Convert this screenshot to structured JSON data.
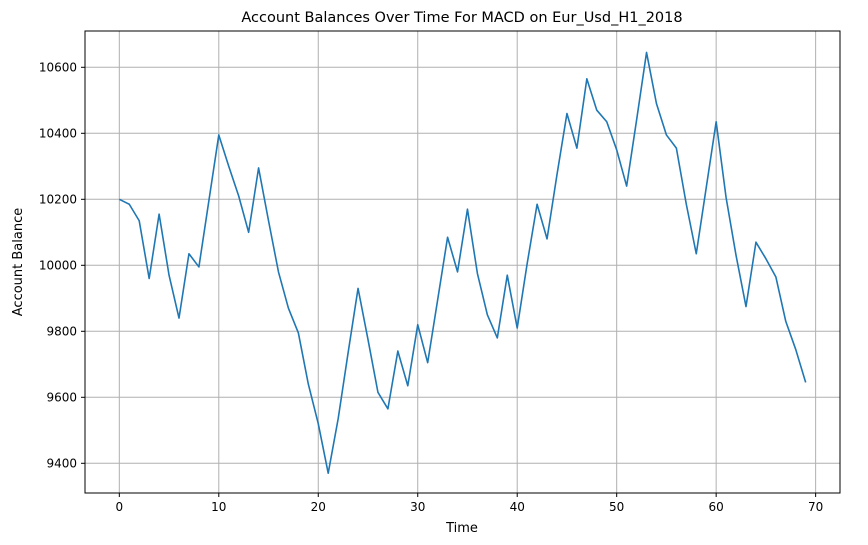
{
  "chart_data": {
    "type": "line",
    "title": "Account Balances Over Time For MACD on Eur_Usd_H1_2018",
    "xlabel": "Time",
    "ylabel": "Account Balance",
    "xlim": [
      -3.45,
      72.45
    ],
    "ylim": [
      9310,
      10710
    ],
    "xticks": [
      0,
      10,
      20,
      30,
      40,
      50,
      60,
      70
    ],
    "yticks": [
      9400,
      9600,
      9800,
      10000,
      10200,
      10400,
      10600
    ],
    "grid": true,
    "line_color": "#1f77b4",
    "series": [
      {
        "x": [
          0,
          1,
          2,
          3,
          4,
          5,
          6,
          7,
          8,
          9,
          10,
          11,
          12,
          13,
          14,
          15,
          16,
          17,
          18,
          19,
          20,
          21,
          22,
          23,
          24,
          25,
          26,
          27,
          28,
          29,
          30,
          31,
          32,
          33,
          34,
          35,
          36,
          37,
          38,
          39,
          40,
          41,
          42,
          43,
          44,
          45,
          46,
          47,
          48,
          49,
          50,
          51,
          52,
          53,
          54,
          55,
          56,
          57,
          58,
          59,
          60,
          61,
          62,
          63,
          64,
          65,
          66,
          67,
          68,
          69
        ],
        "values": [
          10200,
          10185,
          10135,
          9960,
          10155,
          9970,
          9840,
          10035,
          9995,
          10195,
          10395,
          10300,
          10210,
          10100,
          10295,
          10135,
          9980,
          9870,
          9795,
          9640,
          9520,
          9370,
          9535,
          9735,
          9930,
          9775,
          9615,
          9565,
          9740,
          9635,
          9820,
          9705,
          9895,
          10085,
          9980,
          10170,
          9975,
          9850,
          9780,
          9970,
          9810,
          10005,
          10185,
          10080,
          10275,
          10460,
          10355,
          10565,
          10470,
          10435,
          10350,
          10240,
          10440,
          10645,
          10490,
          10395,
          10355,
          10185,
          10035,
          10235,
          10435,
          10205,
          10030,
          9875,
          10070,
          10020,
          9965,
          9830,
          9745,
          9645
        ]
      }
    ]
  }
}
